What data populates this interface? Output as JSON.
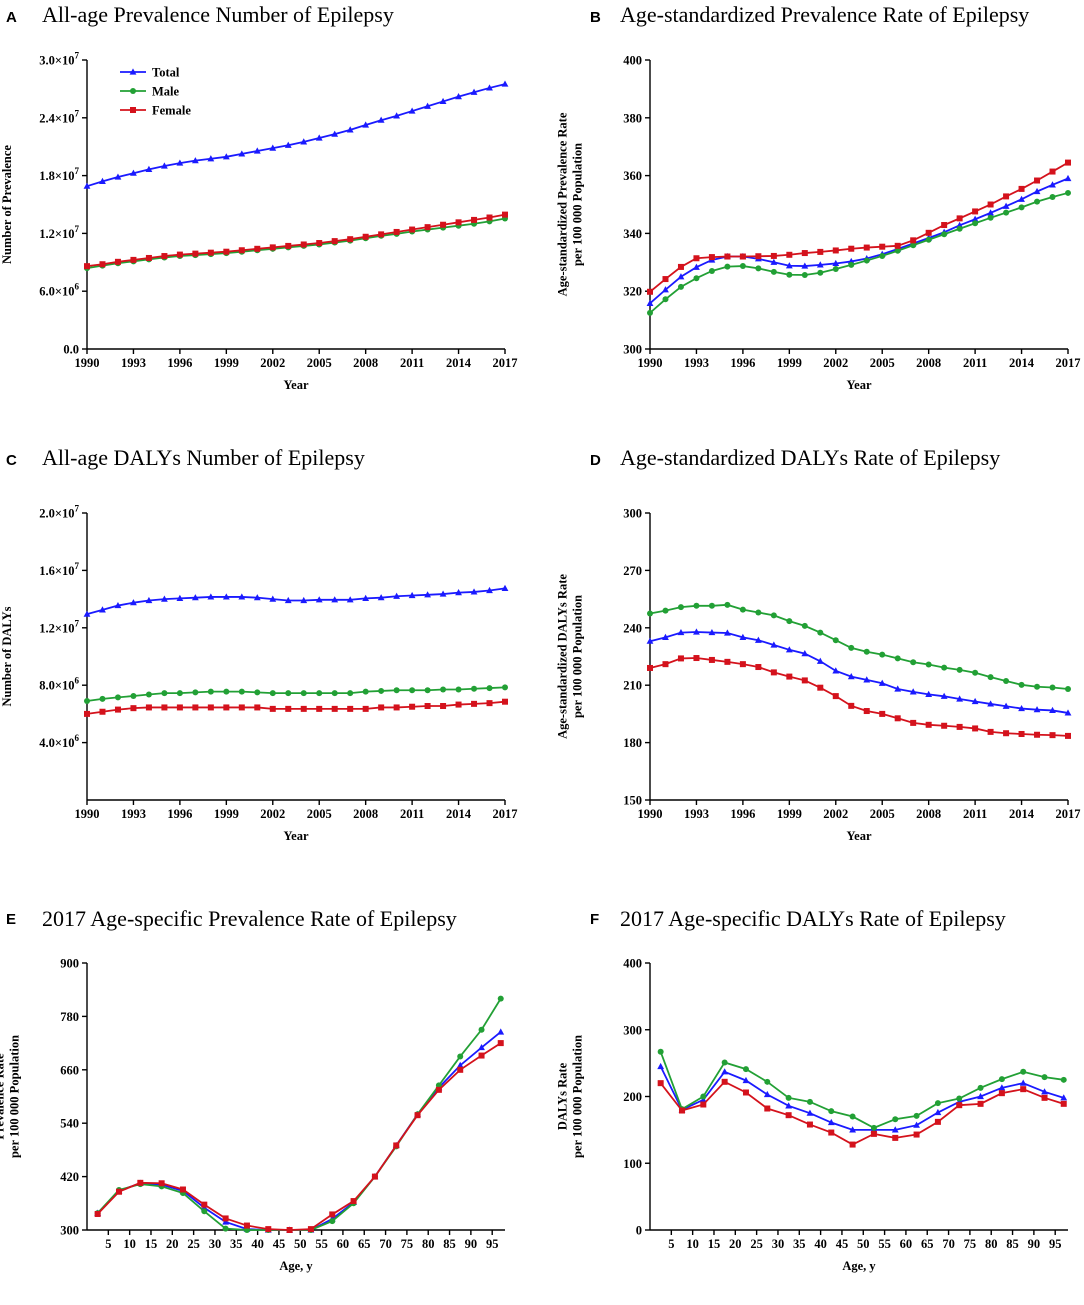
{
  "series_names": [
    "Total",
    "Male",
    "Female"
  ],
  "colors": {
    "Total": "#1a1aff",
    "Male": "#22a035",
    "Female": "#d4121c"
  },
  "chart_data": [
    {
      "id": "A",
      "letter": "A",
      "type": "line",
      "title": "All-age Prevalence Number of Epilepsy",
      "xlabel": "Year",
      "ylabel": [
        "Number of Prevalence"
      ],
      "xlim": [
        1990,
        2017
      ],
      "ylim": [
        0,
        30000000
      ],
      "xticks": [
        1990,
        1993,
        1996,
        1999,
        2002,
        2005,
        2008,
        2011,
        2014,
        2017
      ],
      "xtick_labels": [
        "1990",
        "1993",
        "1996",
        "1999",
        "2002",
        "2005",
        "2008",
        "2011",
        "2014",
        "2017"
      ],
      "yticks": [
        0,
        6000000,
        12000000,
        18000000,
        24000000,
        30000000
      ],
      "ytick_labels": [
        {
          "base": "0.0",
          "exp": ""
        },
        {
          "base": "6.0×10",
          "exp": "6"
        },
        {
          "base": "1.2×10",
          "exp": "7"
        },
        {
          "base": "1.8×10",
          "exp": "7"
        },
        {
          "base": "2.4×10",
          "exp": "7"
        },
        {
          "base": "3.0×10",
          "exp": "7"
        }
      ],
      "legend": {
        "entries": [
          "Total",
          "Male",
          "Female"
        ],
        "position": "top-left"
      },
      "x": [
        1990,
        1991,
        1992,
        1993,
        1994,
        1995,
        1996,
        1997,
        1998,
        1999,
        2000,
        2001,
        2002,
        2003,
        2004,
        2005,
        2006,
        2007,
        2008,
        2009,
        2010,
        2011,
        2012,
        2013,
        2014,
        2015,
        2016,
        2017
      ],
      "series": [
        {
          "name": "Total",
          "values": [
            16900000,
            17400000,
            17850000,
            18250000,
            18650000,
            19000000,
            19300000,
            19550000,
            19750000,
            19950000,
            20250000,
            20550000,
            20850000,
            21150000,
            21500000,
            21900000,
            22300000,
            22750000,
            23250000,
            23750000,
            24200000,
            24700000,
            25200000,
            25700000,
            26200000,
            26650000,
            27100000,
            27500000
          ]
        },
        {
          "name": "Male",
          "values": [
            8400000,
            8650000,
            8900000,
            9100000,
            9300000,
            9500000,
            9650000,
            9750000,
            9850000,
            9950000,
            10100000,
            10250000,
            10400000,
            10550000,
            10700000,
            10850000,
            11050000,
            11250000,
            11500000,
            11750000,
            11950000,
            12200000,
            12400000,
            12600000,
            12800000,
            13000000,
            13250000,
            13550000
          ]
        },
        {
          "name": "Female",
          "values": [
            8600000,
            8800000,
            9050000,
            9250000,
            9450000,
            9650000,
            9800000,
            9900000,
            10000000,
            10100000,
            10250000,
            10400000,
            10550000,
            10700000,
            10850000,
            11000000,
            11200000,
            11400000,
            11650000,
            11900000,
            12150000,
            12400000,
            12650000,
            12900000,
            13150000,
            13400000,
            13650000,
            13950000
          ]
        }
      ]
    },
    {
      "id": "B",
      "letter": "B",
      "type": "line",
      "title": "Age-standardized Prevalence Rate of Epilepsy",
      "xlabel": "Year",
      "ylabel": [
        "Age-standardized Prevalence Rate",
        "per 100 000 Population"
      ],
      "xlim": [
        1990,
        2017
      ],
      "ylim": [
        300,
        400
      ],
      "xticks": [
        1990,
        1993,
        1996,
        1999,
        2002,
        2005,
        2008,
        2011,
        2014,
        2017
      ],
      "xtick_labels": [
        "1990",
        "1993",
        "1996",
        "1999",
        "2002",
        "2005",
        "2008",
        "2011",
        "2014",
        "2017"
      ],
      "yticks": [
        300,
        320,
        340,
        360,
        380,
        400
      ],
      "ytick_labels": [
        "300",
        "320",
        "340",
        "360",
        "380",
        "400"
      ],
      "x": [
        1990,
        1991,
        1992,
        1993,
        1994,
        1995,
        1996,
        1997,
        1998,
        1999,
        2000,
        2001,
        2002,
        2003,
        2004,
        2005,
        2006,
        2007,
        2008,
        2009,
        2010,
        2011,
        2012,
        2013,
        2014,
        2015,
        2016,
        2017
      ],
      "series": [
        {
          "name": "Total",
          "values": [
            315.8,
            320.5,
            325,
            328.3,
            330.8,
            332,
            332,
            331.2,
            330,
            328.8,
            328.7,
            329.1,
            329.6,
            330.3,
            331.3,
            332.8,
            334.6,
            336.5,
            338.4,
            340.4,
            342.8,
            344.9,
            347.1,
            349.4,
            351.8,
            354.5,
            356.8,
            359
          ]
        },
        {
          "name": "Male",
          "values": [
            312.5,
            317.2,
            321.5,
            324.5,
            327,
            328.5,
            328.7,
            327.9,
            326.7,
            325.7,
            325.6,
            326.4,
            327.7,
            329.1,
            330.6,
            332.2,
            334,
            335.9,
            337.8,
            339.7,
            341.6,
            343.5,
            345.4,
            347.2,
            349,
            351,
            352.6,
            354
          ]
        },
        {
          "name": "Female",
          "values": [
            319.8,
            324.2,
            328.4,
            331.4,
            331.8,
            332,
            332,
            332.1,
            332.2,
            332.6,
            333.2,
            333.6,
            334.1,
            334.7,
            335.1,
            335.4,
            335.7,
            337.6,
            340.2,
            342.9,
            345.2,
            347.6,
            350,
            352.8,
            355.4,
            358.3,
            361.4,
            364.5
          ]
        }
      ]
    },
    {
      "id": "C",
      "letter": "C",
      "type": "line",
      "title": "All-age DALYs Number of Epilepsy",
      "xlabel": "Year",
      "ylabel": [
        "Number of DALYs"
      ],
      "xlim": [
        1990,
        2017
      ],
      "ylim": [
        0,
        20000000
      ],
      "xticks": [
        1990,
        1993,
        1996,
        1999,
        2002,
        2005,
        2008,
        2011,
        2014,
        2017
      ],
      "xtick_labels": [
        "1990",
        "1993",
        "1996",
        "1999",
        "2002",
        "2005",
        "2008",
        "2011",
        "2014",
        "2017"
      ],
      "yticks": [
        4000000,
        8000000,
        12000000,
        16000000,
        20000000
      ],
      "ytick_labels": [
        {
          "base": "4.0×10",
          "exp": "6"
        },
        {
          "base": "8.0×10",
          "exp": "6"
        },
        {
          "base": "1.2×10",
          "exp": "7"
        },
        {
          "base": "1.6×10",
          "exp": "7"
        },
        {
          "base": "2.0×10",
          "exp": "7"
        }
      ],
      "x": [
        1990,
        1991,
        1992,
        1993,
        1994,
        1995,
        1996,
        1997,
        1998,
        1999,
        2000,
        2001,
        2002,
        2003,
        2004,
        2005,
        2006,
        2007,
        2008,
        2009,
        2010,
        2011,
        2012,
        2013,
        2014,
        2015,
        2016,
        2017
      ],
      "series": [
        {
          "name": "Total",
          "values": [
            12950000,
            13250000,
            13550000,
            13750000,
            13900000,
            14000000,
            14050000,
            14100000,
            14150000,
            14150000,
            14150000,
            14100000,
            14000000,
            13900000,
            13900000,
            13950000,
            13950000,
            13950000,
            14050000,
            14100000,
            14200000,
            14250000,
            14300000,
            14350000,
            14450000,
            14500000,
            14600000,
            14750000
          ]
        },
        {
          "name": "Male",
          "values": [
            6900000,
            7050000,
            7150000,
            7250000,
            7350000,
            7450000,
            7450000,
            7500000,
            7550000,
            7550000,
            7550000,
            7500000,
            7450000,
            7450000,
            7450000,
            7450000,
            7450000,
            7450000,
            7550000,
            7600000,
            7650000,
            7650000,
            7650000,
            7700000,
            7700000,
            7750000,
            7800000,
            7850000
          ]
        },
        {
          "name": "Female",
          "values": [
            6000000,
            6150000,
            6300000,
            6400000,
            6450000,
            6450000,
            6450000,
            6450000,
            6450000,
            6450000,
            6450000,
            6450000,
            6350000,
            6350000,
            6350000,
            6350000,
            6350000,
            6350000,
            6350000,
            6450000,
            6450000,
            6500000,
            6550000,
            6550000,
            6650000,
            6700000,
            6750000,
            6850000
          ]
        }
      ]
    },
    {
      "id": "D",
      "letter": "D",
      "type": "line",
      "title": "Age-standardized DALYs Rate of Epilepsy",
      "xlabel": "Year",
      "ylabel": [
        "Age-standardized DALYs Rate",
        "per 100 000 Population"
      ],
      "xlim": [
        1990,
        2017
      ],
      "ylim": [
        150,
        300
      ],
      "xticks": [
        1990,
        1993,
        1996,
        1999,
        2002,
        2005,
        2008,
        2011,
        2014,
        2017
      ],
      "xtick_labels": [
        "1990",
        "1993",
        "1996",
        "1999",
        "2002",
        "2005",
        "2008",
        "2011",
        "2014",
        "2017"
      ],
      "yticks": [
        150,
        180,
        210,
        240,
        270,
        300
      ],
      "ytick_labels": [
        "150",
        "180",
        "210",
        "240",
        "270",
        "300"
      ],
      "x": [
        1990,
        1991,
        1992,
        1993,
        1994,
        1995,
        1996,
        1997,
        1998,
        1999,
        2000,
        2001,
        2002,
        2003,
        2004,
        2005,
        2006,
        2007,
        2008,
        2009,
        2010,
        2011,
        2012,
        2013,
        2014,
        2015,
        2016,
        2017
      ],
      "series": [
        {
          "name": "Total",
          "values": [
            233,
            235,
            237.5,
            237.8,
            237.5,
            237.3,
            235,
            233.5,
            231,
            228.5,
            226.5,
            222.5,
            217.5,
            214.5,
            212.8,
            211,
            208,
            206.5,
            205.2,
            204.2,
            202.8,
            201.5,
            200.2,
            199,
            197.8,
            197.2,
            196.8,
            195.5
          ]
        },
        {
          "name": "Male",
          "values": [
            247.5,
            249,
            250.8,
            251.5,
            251.5,
            252,
            249.5,
            248,
            246.5,
            243.5,
            241,
            237.5,
            233.5,
            229.5,
            227.5,
            226,
            224,
            222,
            220.8,
            219.2,
            218,
            216.5,
            214.2,
            212.2,
            210.2,
            209.2,
            208.8,
            208
          ]
        },
        {
          "name": "Female",
          "values": [
            219,
            221,
            224,
            224.2,
            223.2,
            222.2,
            221,
            219.5,
            216.7,
            214.5,
            212.5,
            208.7,
            204.3,
            199.2,
            196.5,
            195,
            192.7,
            190.3,
            189.3,
            188.8,
            188.2,
            187.4,
            185.6,
            184.9,
            184.5,
            184.1,
            183.9,
            183.5
          ]
        }
      ]
    },
    {
      "id": "E",
      "letter": "E",
      "type": "line",
      "title": "2017 Age-specific Prevalence Rate of Epilepsy",
      "xlabel": "Age, y",
      "ylabel": [
        "Prevalence Rate",
        "per 100 000 Population"
      ],
      "xlim": [
        0,
        98
      ],
      "ylim": [
        300,
        900
      ],
      "xticks": [
        5,
        10,
        15,
        20,
        25,
        30,
        35,
        40,
        45,
        50,
        55,
        60,
        65,
        70,
        75,
        80,
        85,
        90,
        95
      ],
      "xtick_labels": [
        "5",
        "10",
        "15",
        "20",
        "25",
        "30",
        "35",
        "40",
        "45",
        "50",
        "55",
        "60",
        "65",
        "70",
        "75",
        "80",
        "85",
        "90",
        "95"
      ],
      "yticks": [
        300,
        420,
        540,
        660,
        780,
        900
      ],
      "ytick_labels": [
        "300",
        "420",
        "540",
        "660",
        "780",
        "900"
      ],
      "x": [
        2.5,
        7.5,
        12.5,
        17.5,
        22.5,
        27.5,
        32.5,
        37.5,
        42.5,
        47.5,
        52.5,
        57.5,
        62.5,
        67.5,
        72.5,
        77.5,
        82.5,
        87.5,
        92.5,
        97
      ],
      "series": [
        {
          "name": "Total",
          "values": [
            338,
            388,
            405,
            402,
            388,
            350,
            318,
            302,
            300,
            300,
            300,
            325,
            362,
            420,
            490,
            560,
            620,
            670,
            710,
            745
          ]
        },
        {
          "name": "Male",
          "values": [
            338,
            390,
            403,
            398,
            383,
            342,
            303,
            300,
            300,
            300,
            300,
            320,
            360,
            420,
            488,
            560,
            625,
            690,
            750,
            820
          ]
        },
        {
          "name": "Female",
          "values": [
            336,
            386,
            406,
            405,
            391,
            357,
            326,
            310,
            302,
            300,
            302,
            335,
            365,
            420,
            490,
            558,
            615,
            660,
            692,
            720
          ]
        }
      ]
    },
    {
      "id": "F",
      "letter": "F",
      "type": "line",
      "title": "2017 Age-specific DALYs Rate of Epilepsy",
      "xlabel": "Age, y",
      "ylabel": [
        "DALYs Rate",
        "per 100 000 Population"
      ],
      "xlim": [
        0,
        98
      ],
      "ylim": [
        0,
        400
      ],
      "xticks": [
        5,
        10,
        15,
        20,
        25,
        30,
        35,
        40,
        45,
        50,
        55,
        60,
        65,
        70,
        75,
        80,
        85,
        90,
        95
      ],
      "xtick_labels": [
        "5",
        "10",
        "15",
        "20",
        "25",
        "30",
        "35",
        "40",
        "45",
        "50",
        "55",
        "60",
        "65",
        "70",
        "75",
        "80",
        "85",
        "90",
        "95"
      ],
      "yticks": [
        0,
        100,
        200,
        300,
        400
      ],
      "ytick_labels": [
        "0",
        "100",
        "200",
        "300",
        "400"
      ],
      "x": [
        2.5,
        7.5,
        12.5,
        17.5,
        22.5,
        27.5,
        32.5,
        37.5,
        42.5,
        47.5,
        52.5,
        57.5,
        62.5,
        67.5,
        72.5,
        77.5,
        82.5,
        87.5,
        92.5,
        97
      ],
      "series": [
        {
          "name": "Total",
          "values": [
            245,
            180,
            195,
            237,
            224,
            203,
            186,
            175,
            161,
            150,
            150,
            150,
            157,
            176,
            192,
            200,
            213,
            220,
            207,
            198
          ]
        },
        {
          "name": "Male",
          "values": [
            267,
            181,
            200,
            251,
            241,
            222,
            198,
            192,
            178,
            170,
            153,
            166,
            171,
            190,
            197,
            213,
            226,
            237,
            229,
            225
          ]
        },
        {
          "name": "Female",
          "values": [
            220,
            179,
            188,
            222,
            206,
            182,
            172,
            158,
            146,
            128,
            144,
            138,
            143,
            162,
            187,
            189,
            205,
            211,
            198,
            189
          ]
        }
      ]
    }
  ]
}
